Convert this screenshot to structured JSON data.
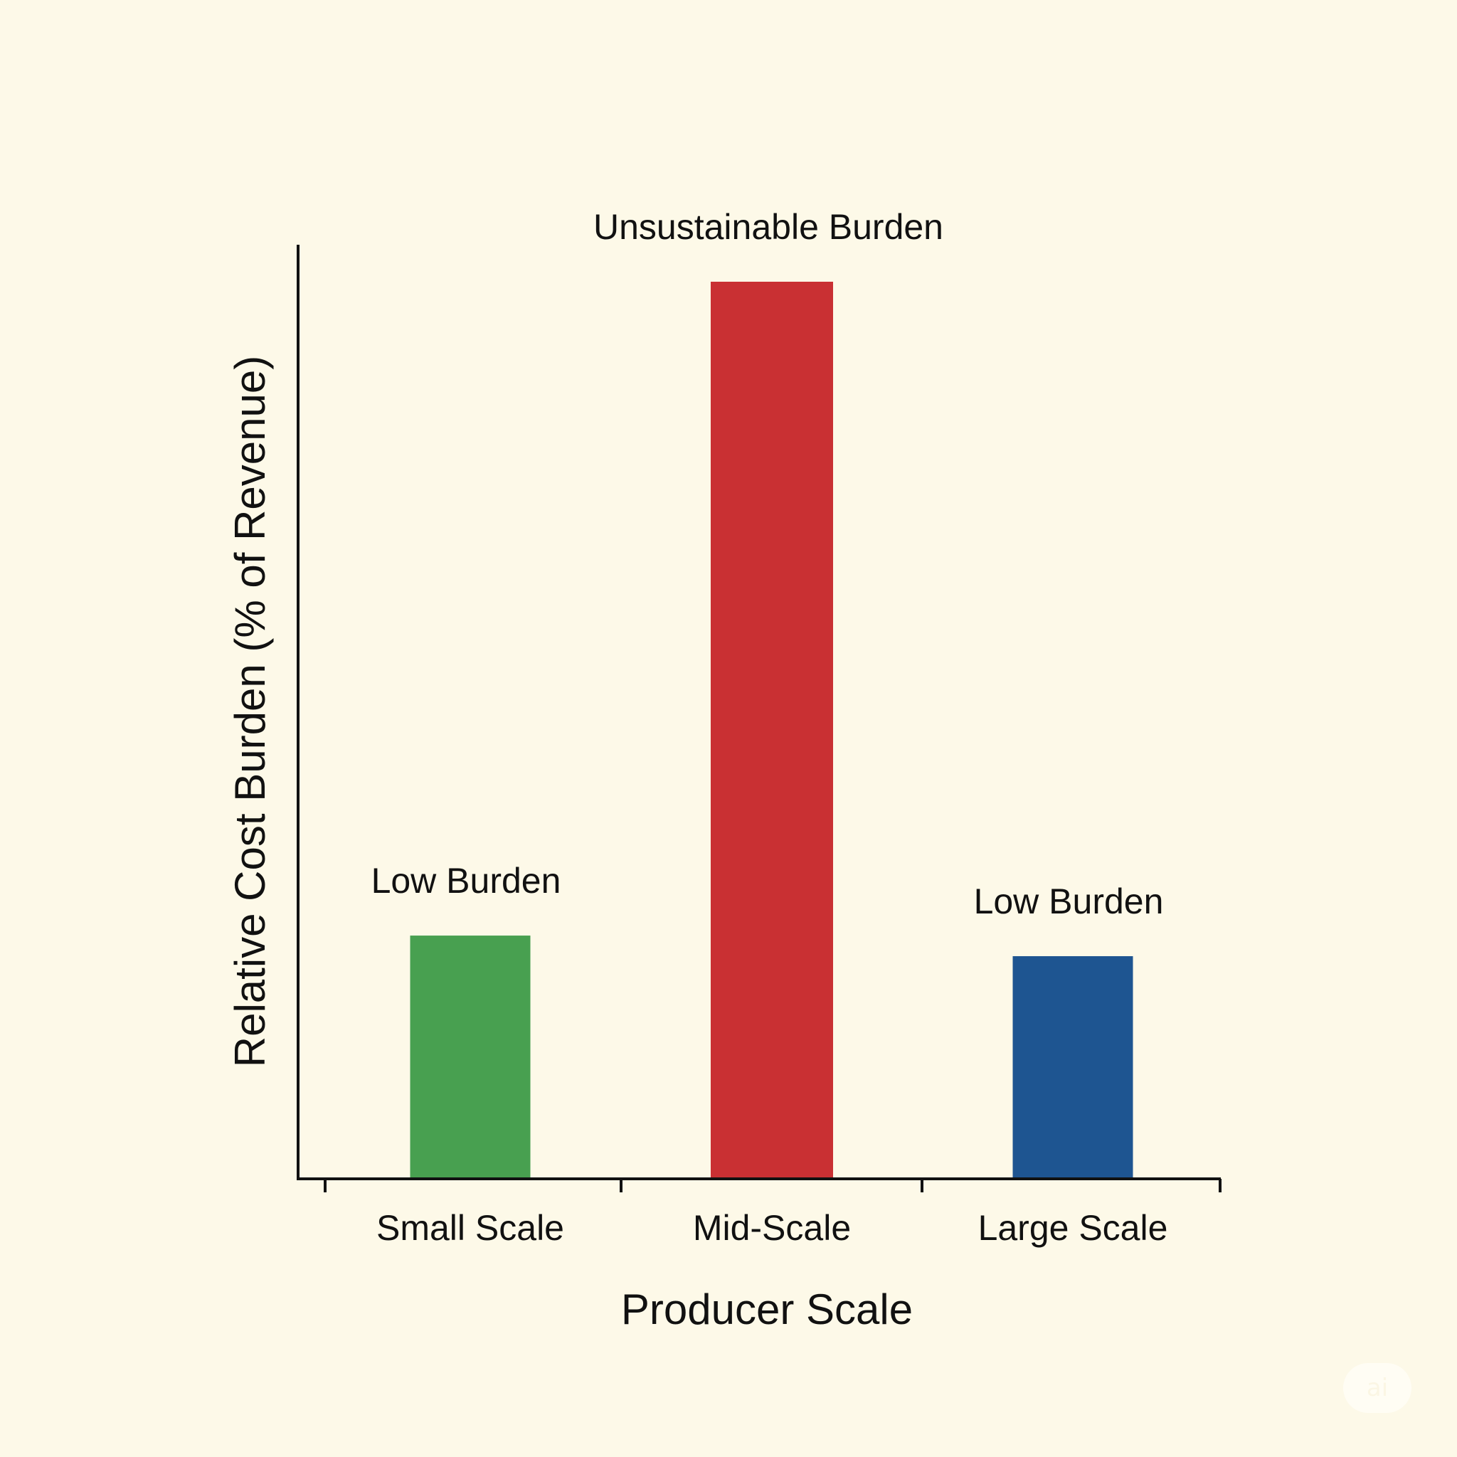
{
  "chart_data": {
    "type": "bar",
    "title": "",
    "xlabel": "Producer Scale",
    "ylabel": "Relative Cost Burden (% of Revenue)",
    "categories": [
      "Small Scale",
      "Mid-Scale",
      "Large Scale"
    ],
    "values": [
      27,
      100,
      24.7
    ],
    "value_scale": "relative (0–100), axis unlabeled",
    "ylim": [
      0,
      100
    ],
    "grid": false,
    "legend": "none",
    "colors": [
      "#48a050",
      "#c93033",
      "#1e5591"
    ],
    "annotations": [
      "Low Burden",
      "Unsustainable Burden",
      "Low Burden"
    ]
  },
  "watermark": {
    "text": "ai"
  }
}
